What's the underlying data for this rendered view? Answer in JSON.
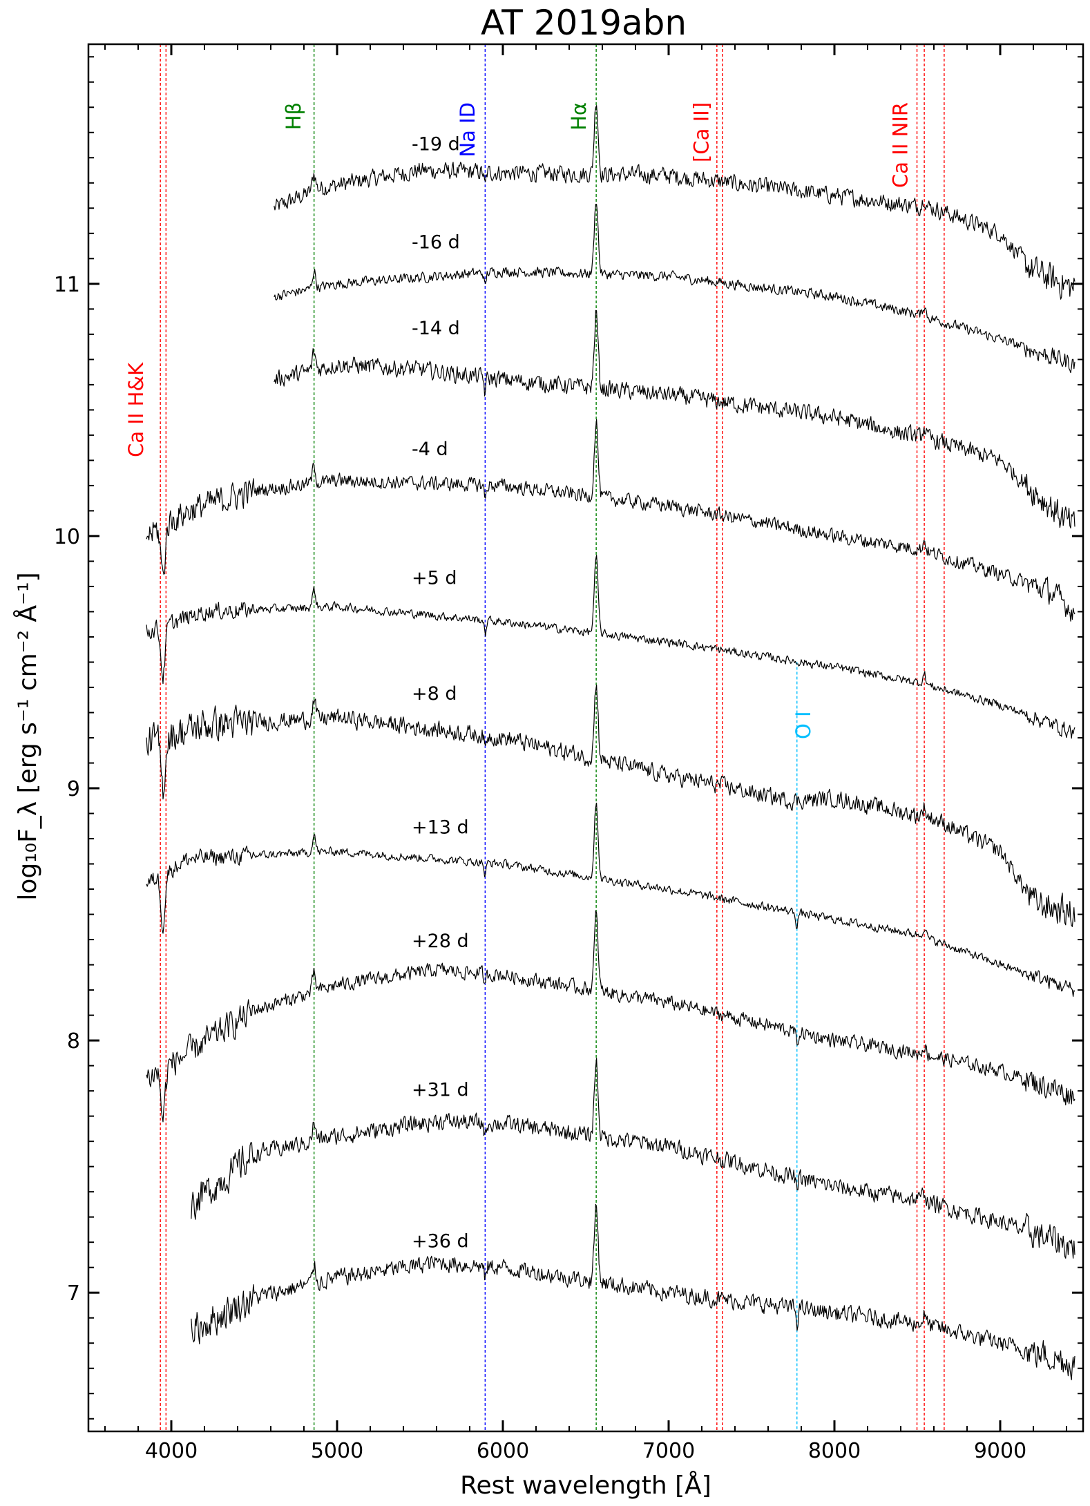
{
  "chart_data": {
    "type": "line",
    "title": "AT 2019abn",
    "xlabel": "Rest wavelength [Å]",
    "ylabel": "log₁₀F_λ [erg s⁻¹ cm⁻² Å⁻¹]",
    "xlim": [
      3500,
      9500
    ],
    "ylim": [
      6.45,
      11.95
    ],
    "x_ticks": [
      4000,
      5000,
      6000,
      7000,
      8000,
      9000
    ],
    "y_ticks": [
      7,
      8,
      9,
      10,
      11
    ],
    "x_tick_labels": [
      "4000",
      "5000",
      "6000",
      "7000",
      "8000",
      "9000"
    ],
    "y_tick_labels": [
      "7",
      "8",
      "9",
      "10",
      "11"
    ],
    "series": [
      {
        "name": "-19 d",
        "start": 4620,
        "end": 9450,
        "anchors": [
          [
            4620,
            11.3
          ],
          [
            4900,
            11.38
          ],
          [
            5500,
            11.45
          ],
          [
            6000,
            11.44
          ],
          [
            7000,
            11.43
          ],
          [
            8000,
            11.35
          ],
          [
            8600,
            11.3
          ],
          [
            9000,
            11.2
          ],
          [
            9200,
            11.05
          ],
          [
            9450,
            10.98
          ]
        ],
        "noise": 0.03
      },
      {
        "name": "-16 d",
        "start": 4620,
        "end": 9450,
        "anchors": [
          [
            4620,
            10.95
          ],
          [
            5000,
            11.0
          ],
          [
            6000,
            11.05
          ],
          [
            7000,
            11.03
          ],
          [
            8000,
            10.95
          ],
          [
            8500,
            10.88
          ],
          [
            9000,
            10.78
          ],
          [
            9450,
            10.68
          ]
        ],
        "noise": 0.018
      },
      {
        "name": "-14 d",
        "start": 4620,
        "end": 9450,
        "anchors": [
          [
            4620,
            10.62
          ],
          [
            5000,
            10.68
          ],
          [
            5500,
            10.66
          ],
          [
            6000,
            10.62
          ],
          [
            7000,
            10.56
          ],
          [
            8000,
            10.47
          ],
          [
            8600,
            10.38
          ],
          [
            9000,
            10.3
          ],
          [
            9300,
            10.12
          ],
          [
            9450,
            10.03
          ]
        ],
        "noise": 0.03
      },
      {
        "name": "-4 d",
        "start": 3850,
        "end": 9450,
        "anchors": [
          [
            3850,
            10.0
          ],
          [
            4100,
            10.1
          ],
          [
            4500,
            10.18
          ],
          [
            5000,
            10.22
          ],
          [
            6000,
            10.2
          ],
          [
            7000,
            10.12
          ],
          [
            8000,
            10.0
          ],
          [
            8500,
            9.95
          ],
          [
            9000,
            9.85
          ],
          [
            9300,
            9.78
          ],
          [
            9450,
            9.7
          ]
        ],
        "noise": 0.025
      },
      {
        "name": "+5 d",
        "start": 3850,
        "end": 9450,
        "anchors": [
          [
            3850,
            9.62
          ],
          [
            4200,
            9.7
          ],
          [
            5000,
            9.72
          ],
          [
            6000,
            9.66
          ],
          [
            7000,
            9.58
          ],
          [
            8000,
            9.48
          ],
          [
            8500,
            9.42
          ],
          [
            9000,
            9.33
          ],
          [
            9450,
            9.22
          ]
        ],
        "noise": 0.015
      },
      {
        "name": "+8 d",
        "start": 3850,
        "end": 9450,
        "anchors": [
          [
            3850,
            9.18
          ],
          [
            4200,
            9.25
          ],
          [
            5000,
            9.28
          ],
          [
            6000,
            9.2
          ],
          [
            7000,
            9.05
          ],
          [
            7400,
            9.0
          ],
          [
            7500,
            8.98
          ],
          [
            7750,
            8.95
          ],
          [
            8000,
            8.96
          ],
          [
            8600,
            8.88
          ],
          [
            9000,
            8.75
          ],
          [
            9200,
            8.55
          ],
          [
            9450,
            8.5
          ]
        ],
        "noise": 0.03
      },
      {
        "name": "+13 d",
        "start": 3850,
        "end": 9450,
        "anchors": [
          [
            3850,
            8.62
          ],
          [
            4100,
            8.72
          ],
          [
            5000,
            8.75
          ],
          [
            6000,
            8.7
          ],
          [
            7000,
            8.6
          ],
          [
            8000,
            8.48
          ],
          [
            8500,
            8.42
          ],
          [
            9000,
            8.3
          ],
          [
            9450,
            8.2
          ]
        ],
        "noise": 0.015
      },
      {
        "name": "+28 d",
        "start": 3850,
        "end": 9450,
        "anchors": [
          [
            3850,
            7.85
          ],
          [
            4100,
            7.95
          ],
          [
            4500,
            8.12
          ],
          [
            5000,
            8.22
          ],
          [
            5600,
            8.28
          ],
          [
            6000,
            8.26
          ],
          [
            7000,
            8.15
          ],
          [
            8000,
            8.0
          ],
          [
            8500,
            7.95
          ],
          [
            9000,
            7.88
          ],
          [
            9450,
            7.78
          ]
        ],
        "noise": 0.025
      },
      {
        "name": "+31 d",
        "start": 4120,
        "end": 9450,
        "anchors": [
          [
            4120,
            7.35
          ],
          [
            4500,
            7.55
          ],
          [
            5000,
            7.62
          ],
          [
            5600,
            7.68
          ],
          [
            6000,
            7.67
          ],
          [
            7000,
            7.58
          ],
          [
            8000,
            7.42
          ],
          [
            8500,
            7.37
          ],
          [
            9000,
            7.28
          ],
          [
            9450,
            7.18
          ]
        ],
        "noise": 0.03
      },
      {
        "name": "+36 d",
        "start": 4120,
        "end": 9450,
        "anchors": [
          [
            4120,
            6.85
          ],
          [
            4500,
            6.98
          ],
          [
            5000,
            7.06
          ],
          [
            5600,
            7.12
          ],
          [
            6000,
            7.1
          ],
          [
            7000,
            7.0
          ],
          [
            8000,
            6.92
          ],
          [
            8500,
            6.88
          ],
          [
            9000,
            6.8
          ],
          [
            9450,
            6.72
          ]
        ],
        "noise": 0.03
      }
    ],
    "epoch_labels": [
      {
        "text": "-19 d",
        "x": 5450,
        "y": 11.53
      },
      {
        "text": "-16 d",
        "x": 5450,
        "y": 11.14
      },
      {
        "text": "-14 d",
        "x": 5450,
        "y": 10.8
      },
      {
        "text": "-4 d",
        "x": 5450,
        "y": 10.32
      },
      {
        "text": "+5 d",
        "x": 5450,
        "y": 9.81
      },
      {
        "text": "+8 d",
        "x": 5450,
        "y": 9.35
      },
      {
        "text": "+13 d",
        "x": 5450,
        "y": 8.82
      },
      {
        "text": "+28 d",
        "x": 5450,
        "y": 8.37
      },
      {
        "text": "+31 d",
        "x": 5450,
        "y": 7.78
      },
      {
        "text": "+36 d",
        "x": 5450,
        "y": 7.18
      }
    ],
    "line_markers": [
      {
        "name": "Ca II H&K",
        "wavelengths": [
          3934,
          3968
        ],
        "color": "#ff0000",
        "label_x": 3830,
        "label_y": 10.5,
        "label_top": false
      },
      {
        "name": "Hβ",
        "wavelengths": [
          4861
        ],
        "color": "#008000",
        "label_x": 4780,
        "label_y": 11.72,
        "label_top": true
      },
      {
        "name": "Na ID",
        "wavelengths": [
          5893
        ],
        "color": "#0000ff",
        "label_x": 5830,
        "label_y": 11.72,
        "label_top": true
      },
      {
        "name": "Hα",
        "wavelengths": [
          6563
        ],
        "color": "#008000",
        "label_x": 6500,
        "label_y": 11.72,
        "label_top": true
      },
      {
        "name": "[Ca II]",
        "wavelengths": [
          7291,
          7324
        ],
        "color": "#ff0000",
        "label_x": 7240,
        "label_y": 11.72,
        "label_top": true
      },
      {
        "name": "Ca II NIR",
        "wavelengths": [
          8498,
          8542,
          8662
        ],
        "color": "#ff0000",
        "label_x": 8440,
        "label_y": 11.72,
        "label_top": true
      },
      {
        "name": "O I",
        "wavelengths": [
          7774
        ],
        "color": "#00bfff",
        "label_x": 7855,
        "label_y": 9.25,
        "label_top": false,
        "line_top": 9.5
      }
    ]
  }
}
